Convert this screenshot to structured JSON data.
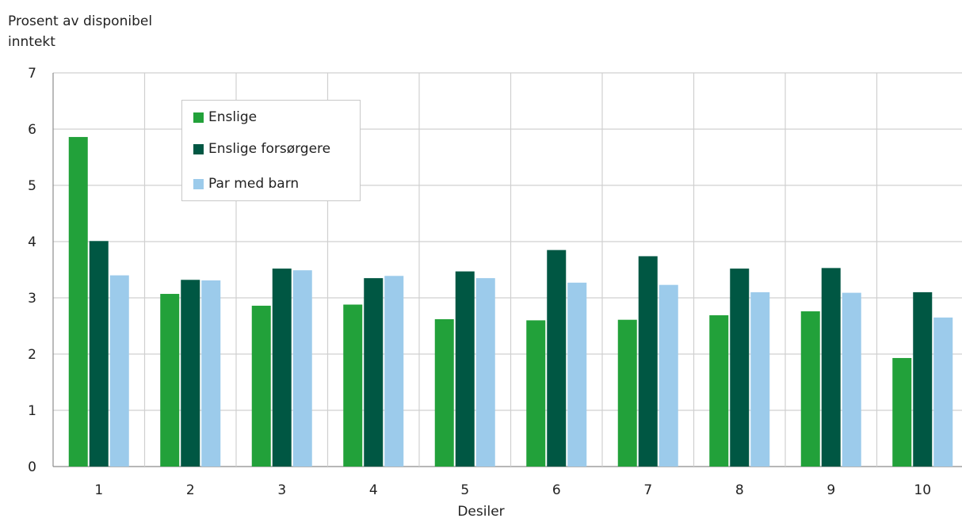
{
  "chart_data": {
    "type": "bar",
    "ylabel": "Prosent av disponibel inntekt",
    "xlabel": "Desiler",
    "ylim": [
      0,
      7
    ],
    "yticks": [
      "0",
      "1",
      "2",
      "3",
      "4",
      "5",
      "6",
      "7"
    ],
    "categories": [
      "1",
      "2",
      "3",
      "4",
      "5",
      "6",
      "7",
      "8",
      "9",
      "10"
    ],
    "grid": true,
    "legend_position": "top-left",
    "series": [
      {
        "name": "Enslige",
        "color": "#22a13a",
        "values": [
          5.86,
          3.07,
          2.86,
          2.88,
          2.62,
          2.6,
          2.61,
          2.69,
          2.76,
          1.93
        ]
      },
      {
        "name": "Enslige forsørgere",
        "color": "#005743",
        "values": [
          4.01,
          3.32,
          3.52,
          3.35,
          3.47,
          3.85,
          3.74,
          3.52,
          3.53,
          3.1
        ]
      },
      {
        "name": "Par med barn",
        "color": "#9ccbeb",
        "values": [
          3.4,
          3.31,
          3.49,
          3.39,
          3.35,
          3.27,
          3.23,
          3.1,
          3.09,
          2.65
        ]
      }
    ]
  }
}
